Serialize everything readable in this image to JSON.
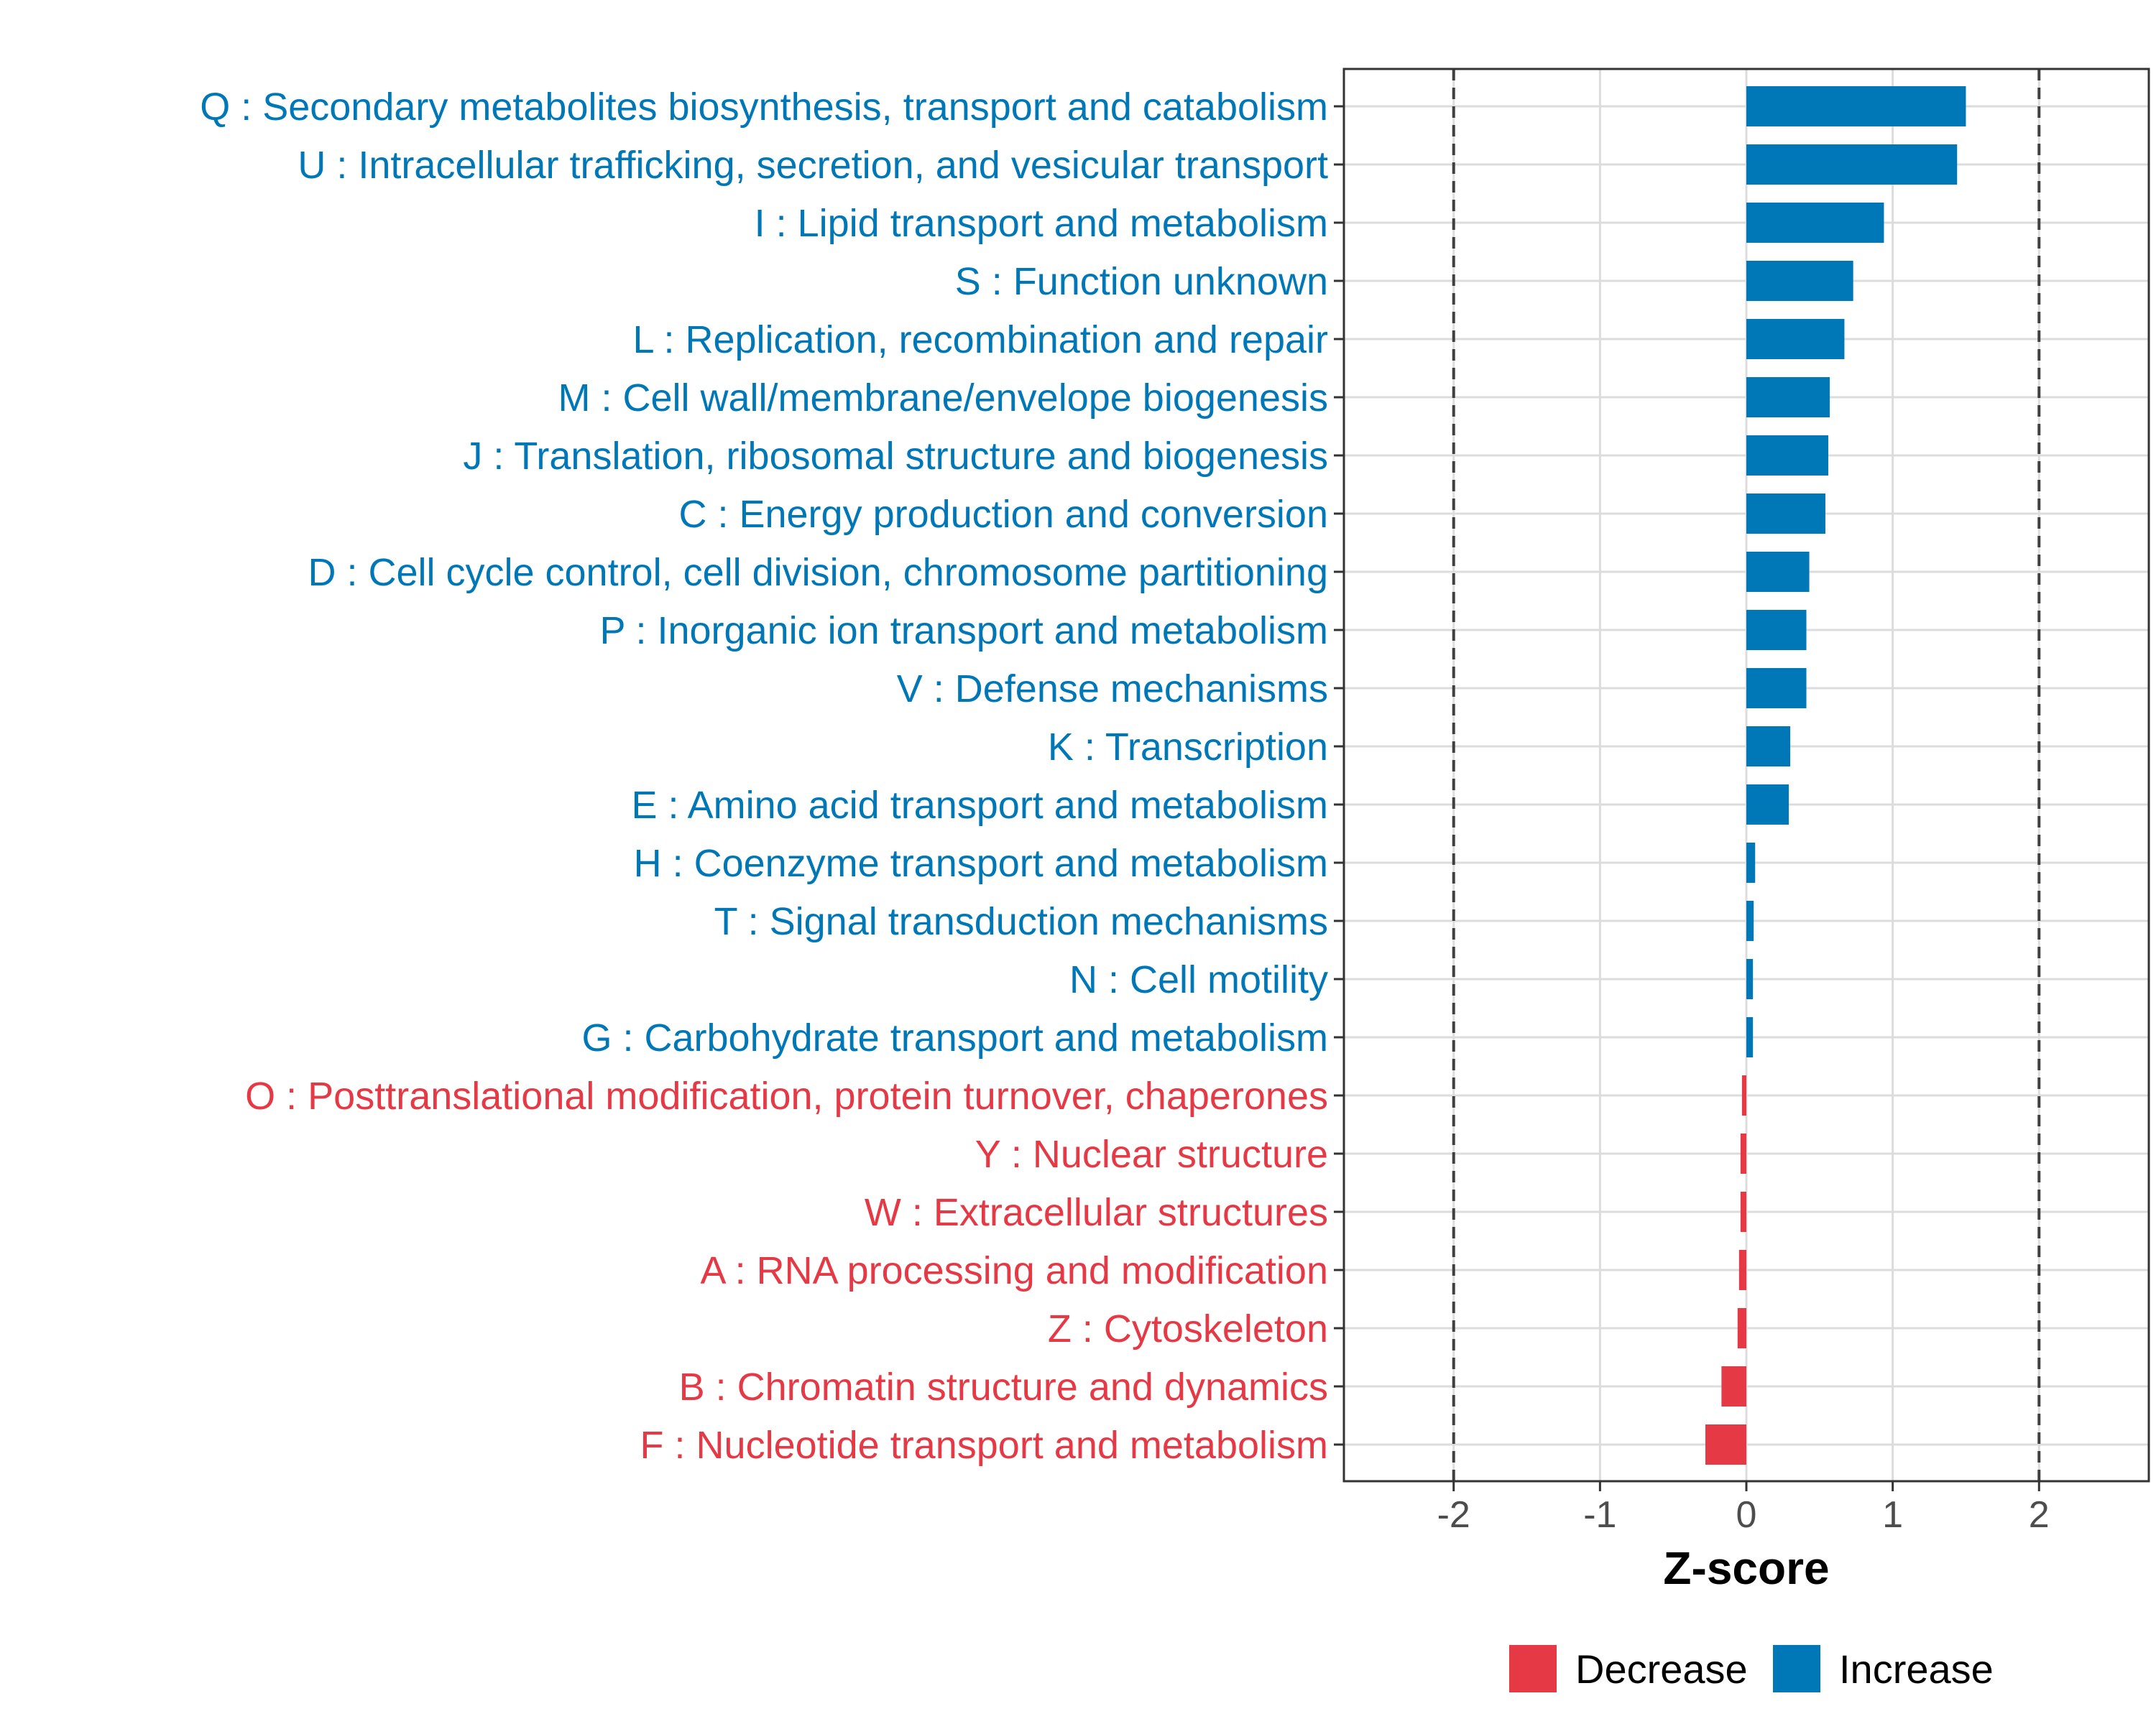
{
  "chart_data": {
    "type": "bar",
    "orientation": "horizontal",
    "xlabel": "Z-score",
    "xlim": [
      -2.75,
      2.75
    ],
    "xticks": [
      -2,
      -1,
      0,
      1,
      2
    ],
    "xtick_labels": [
      "-2",
      "-1",
      "0",
      "1",
      "2"
    ],
    "reference_lines": [
      -2,
      2
    ],
    "grid": true,
    "legend_position": "bottom",
    "legend": [
      {
        "key": "decrease",
        "label": "Decrease",
        "color": "#E63946"
      },
      {
        "key": "increase",
        "label": "Increase",
        "color": "#0077B6"
      }
    ],
    "categories": [
      {
        "label": "Q : Secondary metabolites biosynthesis, transport and catabolism",
        "value": 1.5,
        "group": "increase"
      },
      {
        "label": "U : Intracellular trafficking, secretion, and vesicular transport",
        "value": 1.44,
        "group": "increase"
      },
      {
        "label": "I : Lipid transport and metabolism",
        "value": 0.94,
        "group": "increase"
      },
      {
        "label": "S : Function unknown",
        "value": 0.73,
        "group": "increase"
      },
      {
        "label": "L : Replication, recombination and repair",
        "value": 0.67,
        "group": "increase"
      },
      {
        "label": "M : Cell wall/membrane/envelope biogenesis",
        "value": 0.57,
        "group": "increase"
      },
      {
        "label": "J : Translation, ribosomal structure and biogenesis",
        "value": 0.56,
        "group": "increase"
      },
      {
        "label": "C : Energy production and conversion",
        "value": 0.54,
        "group": "increase"
      },
      {
        "label": "D : Cell cycle control, cell division, chromosome partitioning",
        "value": 0.43,
        "group": "increase"
      },
      {
        "label": "P : Inorganic ion transport and metabolism",
        "value": 0.41,
        "group": "increase"
      },
      {
        "label": "V : Defense mechanisms",
        "value": 0.41,
        "group": "increase"
      },
      {
        "label": "K : Transcription",
        "value": 0.3,
        "group": "increase"
      },
      {
        "label": "E : Amino acid transport and metabolism",
        "value": 0.29,
        "group": "increase"
      },
      {
        "label": "H : Coenzyme transport and metabolism",
        "value": 0.06,
        "group": "increase"
      },
      {
        "label": "T : Signal transduction mechanisms",
        "value": 0.05,
        "group": "increase"
      },
      {
        "label": "N : Cell motility",
        "value": 0.045,
        "group": "increase"
      },
      {
        "label": "G : Carbohydrate transport and metabolism",
        "value": 0.045,
        "group": "increase"
      },
      {
        "label": "O : Posttranslational modification, protein turnover, chaperones",
        "value": -0.03,
        "group": "decrease"
      },
      {
        "label": "Y : Nuclear structure",
        "value": -0.04,
        "group": "decrease"
      },
      {
        "label": "W : Extracellular structures",
        "value": -0.04,
        "group": "decrease"
      },
      {
        "label": "A : RNA processing and modification",
        "value": -0.05,
        "group": "decrease"
      },
      {
        "label": "Z : Cytoskeleton",
        "value": -0.06,
        "group": "decrease"
      },
      {
        "label": "B : Chromatin structure and dynamics",
        "value": -0.17,
        "group": "decrease"
      },
      {
        "label": "F : Nucleotide transport and metabolism",
        "value": -0.28,
        "group": "decrease"
      }
    ]
  }
}
